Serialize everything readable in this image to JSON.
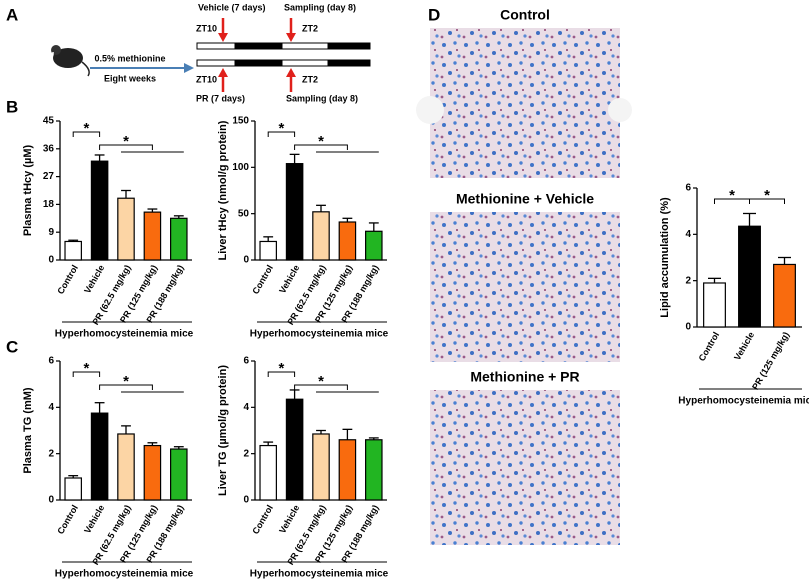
{
  "panel_labels": [
    "A",
    "B",
    "C",
    "D"
  ],
  "schematic": {
    "treatment": "0.5% methionine",
    "duration": "Eight weeks",
    "top": {
      "group": "Vehicle (7 days)",
      "time": "ZT10",
      "sampling": "Sampling (day 8)",
      "sampling_time": "ZT2"
    },
    "bottom": {
      "group": "PR (7 days)",
      "time": "ZT10",
      "sampling": "Sampling (day 8)",
      "sampling_time": "ZT2"
    }
  },
  "micrographs": [
    "Control",
    "Methionine + Vehicle",
    "Methionine + PR"
  ],
  "chart_data": [
    {
      "type": "bar",
      "ylabel": "Plasma tHcy (µM)",
      "categories": [
        "Control",
        "Vehicle",
        "PR (62.5 mg/kg)",
        "PR (125 mg/kg)",
        "PR (188 mg/kg)"
      ],
      "values": [
        6,
        32,
        20,
        15.5,
        13.5
      ],
      "errors": [
        0.4,
        2,
        2.5,
        1,
        0.8
      ],
      "colors": [
        "#ffffff",
        "#000000",
        "#fcd5a5",
        "#f96b0e",
        "#22b522"
      ],
      "ylim": [
        0,
        45
      ],
      "yticks": [
        0,
        9,
        18,
        27,
        36,
        45
      ],
      "group_label": "Hyperhomocysteinemia mice",
      "annotations": [
        "*",
        "*"
      ]
    },
    {
      "type": "bar",
      "ylabel": "Liver tHcy (nmol/g protein)",
      "categories": [
        "Control",
        "Vehicle",
        "PR (62.5 mg/kg)",
        "PR (125 mg/kg)",
        "PR (188 mg/kg)"
      ],
      "values": [
        20,
        104,
        52,
        41,
        31
      ],
      "errors": [
        5,
        10,
        7,
        4,
        9
      ],
      "colors": [
        "#ffffff",
        "#000000",
        "#fcd5a5",
        "#f96b0e",
        "#22b522"
      ],
      "ylim": [
        0,
        150
      ],
      "yticks": [
        0,
        50,
        100,
        150
      ],
      "group_label": "Hyperhomocysteinemia mice",
      "annotations": [
        "*",
        "*"
      ]
    },
    {
      "type": "bar",
      "ylabel": "Plasma TG (mM)",
      "categories": [
        "Control",
        "Vehicle",
        "PR (62.5 mg/kg)",
        "PR (125 mg/kg)",
        "PR (188 mg/kg)"
      ],
      "values": [
        0.95,
        3.75,
        2.85,
        2.35,
        2.2
      ],
      "errors": [
        0.1,
        0.45,
        0.35,
        0.12,
        0.1
      ],
      "colors": [
        "#ffffff",
        "#000000",
        "#fcd5a5",
        "#f96b0e",
        "#22b522"
      ],
      "ylim": [
        0,
        6
      ],
      "yticks": [
        0,
        2,
        4,
        6
      ],
      "group_label": "Hyperhomocysteinemia mice",
      "annotations": [
        "*",
        "*"
      ]
    },
    {
      "type": "bar",
      "ylabel": "Liver TG (µmol/g protein)",
      "categories": [
        "Control",
        "Vehicle",
        "PR (62.5 mg/kg)",
        "PR (125 mg/kg)",
        "PR (188 mg/kg)"
      ],
      "values": [
        2.35,
        4.35,
        2.85,
        2.6,
        2.6
      ],
      "errors": [
        0.15,
        0.4,
        0.15,
        0.45,
        0.08
      ],
      "colors": [
        "#ffffff",
        "#000000",
        "#fcd5a5",
        "#f96b0e",
        "#22b522"
      ],
      "ylim": [
        0,
        6
      ],
      "yticks": [
        0,
        2,
        4,
        6
      ],
      "group_label": "Hyperhomocysteinemia mice",
      "annotations": [
        "*",
        "*"
      ]
    },
    {
      "type": "bar",
      "ylabel": "Lipid accumulation (%)",
      "categories": [
        "Control",
        "Vehicle",
        "PR (125 mg/kg)"
      ],
      "values": [
        1.9,
        4.35,
        2.7
      ],
      "errors": [
        0.2,
        0.55,
        0.3
      ],
      "colors": [
        "#ffffff",
        "#000000",
        "#f96b0e"
      ],
      "ylim": [
        0,
        6
      ],
      "yticks": [
        0,
        2,
        4,
        6
      ],
      "group_label": "Hyperhomocysteinemia mice",
      "annotations": [
        "*",
        "*"
      ]
    }
  ]
}
